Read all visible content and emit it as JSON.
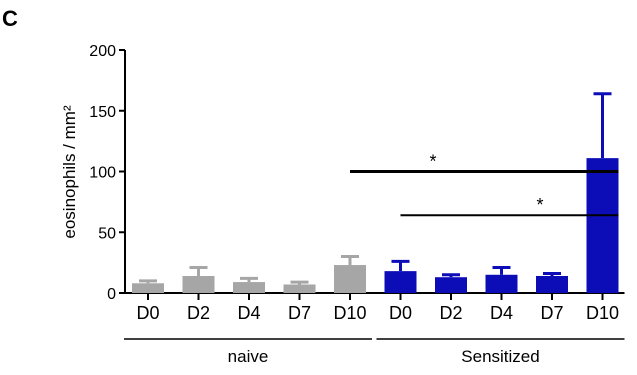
{
  "panel_label": "C",
  "chart_data": {
    "type": "bar",
    "title": "",
    "xlabel": "",
    "ylabel": "eosinophils / mm²",
    "ylim": [
      0,
      200
    ],
    "yticks": [
      0,
      50,
      100,
      150,
      200
    ],
    "categories": [
      "D0",
      "D2",
      "D4",
      "D7",
      "D10",
      "D0",
      "D2",
      "D4",
      "D7",
      "D10"
    ],
    "values": [
      8,
      14,
      9,
      7,
      23,
      18,
      13,
      15,
      14,
      111
    ],
    "errors": [
      2,
      7,
      3,
      2,
      7,
      8,
      2,
      6,
      2,
      53
    ],
    "groups": [
      {
        "label": "naive",
        "start": 0,
        "end": 4,
        "color": "#a6a6a6"
      },
      {
        "label": "Sensitized",
        "start": 5,
        "end": 9,
        "color": "#0d0db8"
      }
    ],
    "significance": [
      {
        "from": 4,
        "to": 9,
        "y": 100,
        "label": "*"
      },
      {
        "from": 5,
        "to": 9,
        "y": 64,
        "label": "*"
      }
    ],
    "grid": false,
    "legend": "none"
  }
}
